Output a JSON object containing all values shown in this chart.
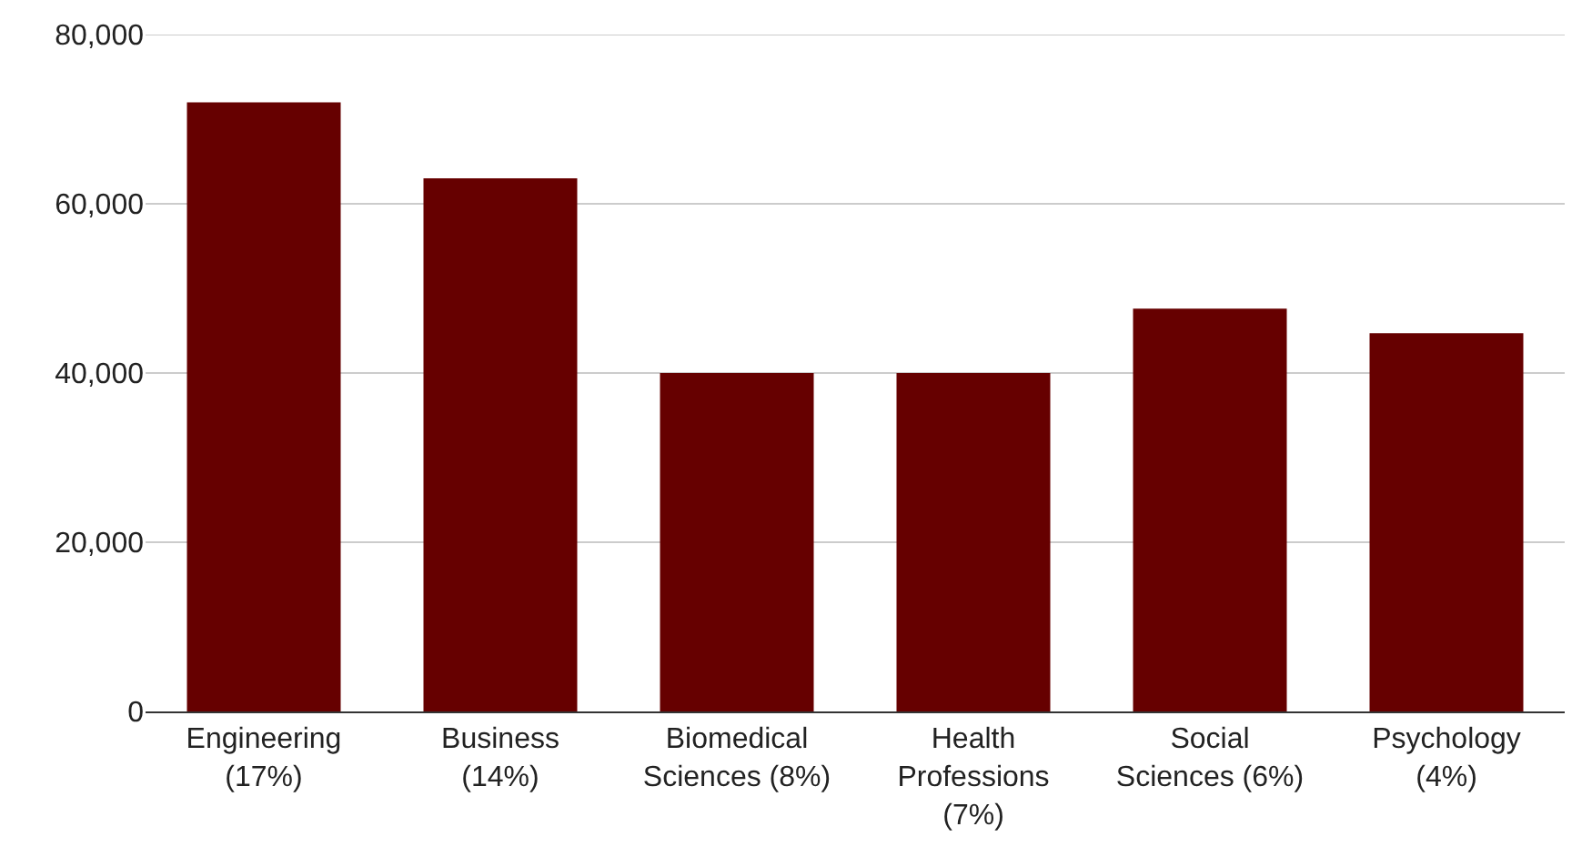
{
  "chart_data": {
    "type": "bar",
    "categories": [
      "Engineering (17%)",
      "Business (14%)",
      "Biomedical Sciences (8%)",
      "Health Professions (7%)",
      "Social Sciences (6%)",
      "Psychology (4%)"
    ],
    "values": [
      72000,
      63000,
      40000,
      40000,
      47600,
      44700
    ],
    "color": "#660000",
    "ylim": [
      0,
      80000
    ],
    "yticks": [
      {
        "value": 0,
        "label": "0"
      },
      {
        "value": 20000,
        "label": "20,000"
      },
      {
        "value": 40000,
        "label": "40,000"
      },
      {
        "value": 60000,
        "label": "60,000"
      },
      {
        "value": 80000,
        "label": "80,000"
      }
    ],
    "grid": "y"
  }
}
